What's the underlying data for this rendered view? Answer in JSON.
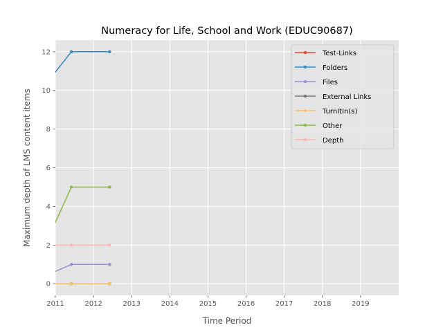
{
  "chart_data": {
    "type": "line",
    "title": "Numeracy for Life, School and Work (EDUC90687)",
    "xlabel": "Time Period",
    "ylabel": "Maximum depth of LMS content items",
    "xlim": [
      2011,
      2020
    ],
    "ylim": [
      -0.6,
      12.6
    ],
    "xticks": [
      2011,
      2012,
      2013,
      2014,
      2015,
      2016,
      2017,
      2018,
      2019
    ],
    "xtick_labels": [
      "2011",
      "2012",
      "2013",
      "2014",
      "2015",
      "2016",
      "2017",
      "2018",
      "2019"
    ],
    "yticks": [
      0,
      2,
      4,
      6,
      8,
      10,
      12
    ],
    "ytick_labels": [
      "0",
      "2",
      "4",
      "6",
      "8",
      "10",
      "12"
    ],
    "grid": true,
    "legend_position": "top-right",
    "x": [
      2010.5,
      2011.42,
      2012.42
    ],
    "series": [
      {
        "name": "Test-Links",
        "color": "#e24a33",
        "values": [
          0,
          0,
          0
        ]
      },
      {
        "name": "Folders",
        "color": "#348abd",
        "values": [
          9.7,
          12,
          12
        ]
      },
      {
        "name": "Files",
        "color": "#988ed5",
        "values": [
          0.2,
          1,
          1
        ]
      },
      {
        "name": "External Links",
        "color": "#777777",
        "values": [
          0,
          0,
          0
        ]
      },
      {
        "name": "TurnItIn(s)",
        "color": "#fbc15e",
        "values": [
          0,
          0,
          0
        ]
      },
      {
        "name": "Other",
        "color": "#8eba42",
        "values": [
          1,
          5,
          5
        ]
      },
      {
        "name": "Depth",
        "color": "#ffb5b8",
        "values": [
          2,
          2,
          2
        ]
      }
    ]
  }
}
